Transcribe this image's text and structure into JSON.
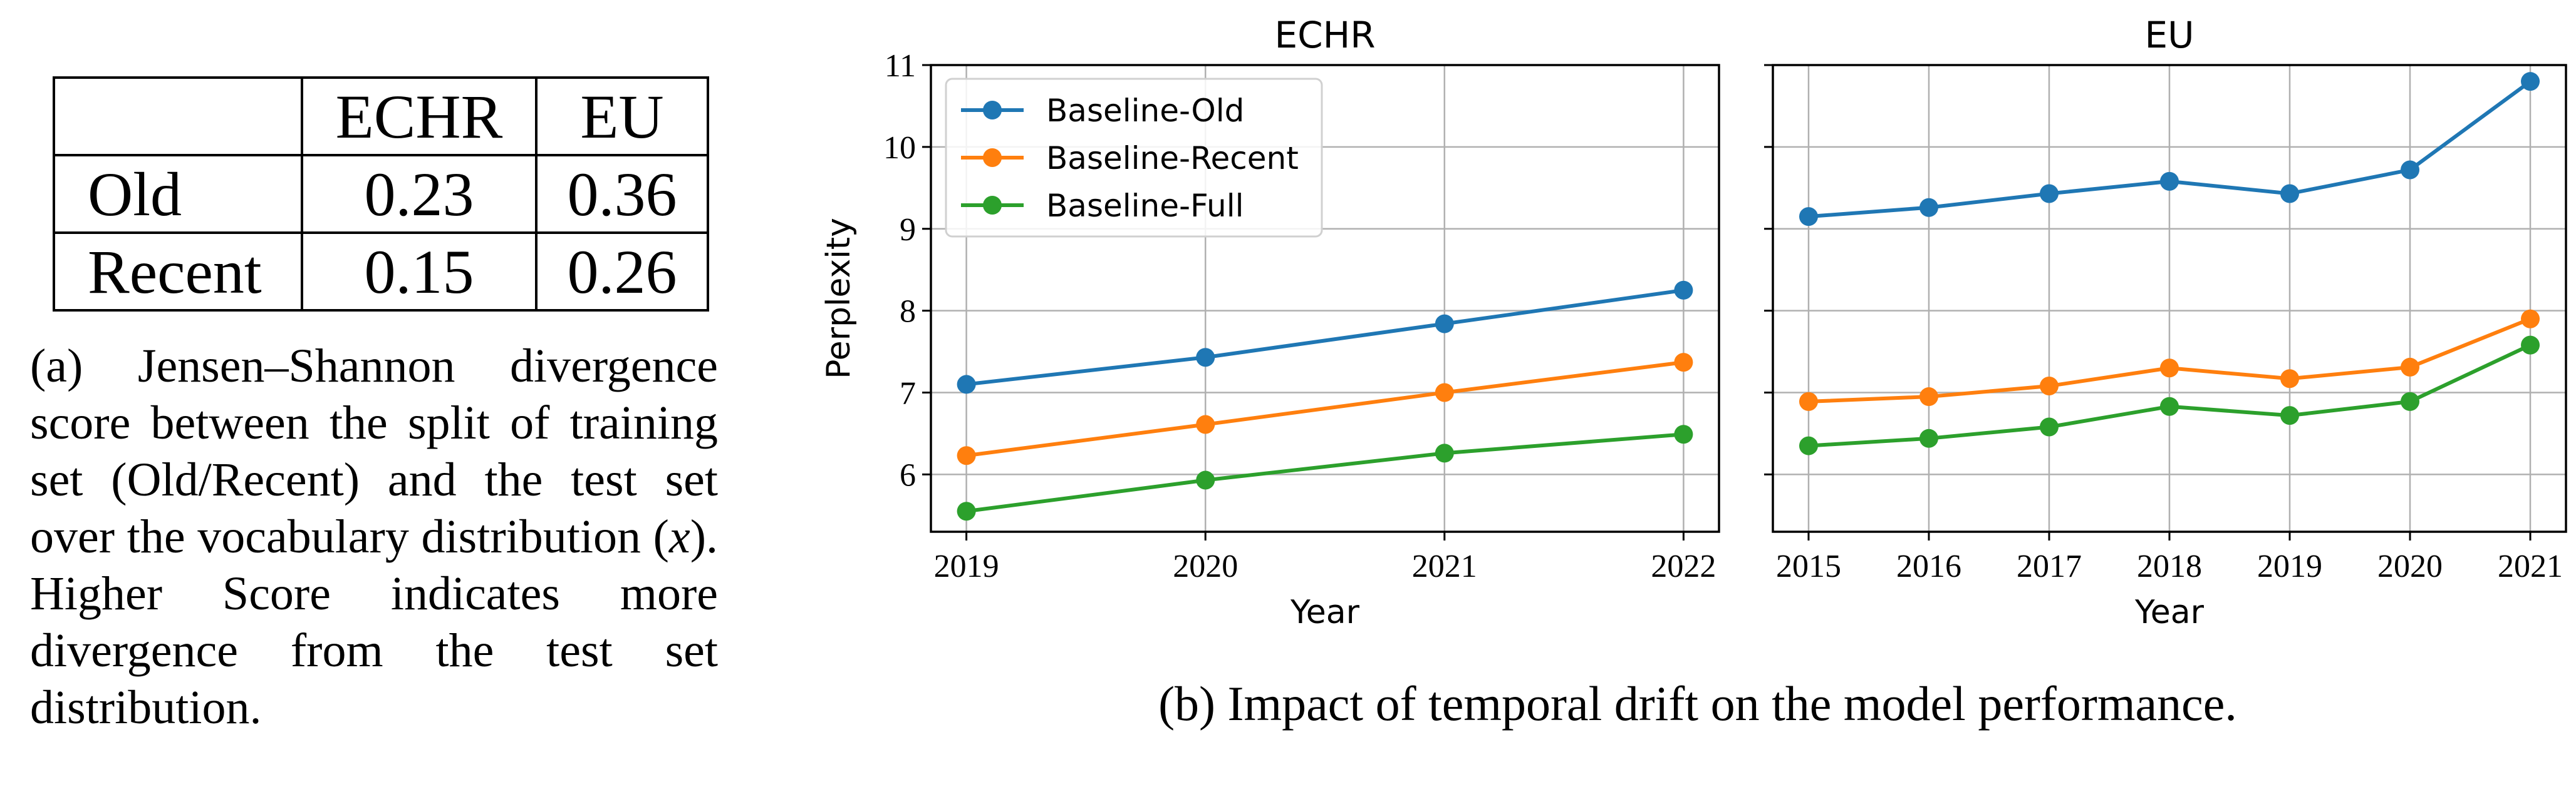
{
  "table": {
    "headers": [
      "",
      "ECHR",
      "EU"
    ],
    "rows": [
      {
        "label": "Old",
        "ECHR": "0.23",
        "EU": "0.36"
      },
      {
        "label": "Recent",
        "ECHR": "0.15",
        "EU": "0.26"
      }
    ]
  },
  "captions": {
    "a_prefix": "(a) Jensen–Shannon divergence score between the split of training set (Old/Recent) and the test set over the vocabulary distribution (",
    "a_var": "x",
    "a_suffix": "). Higher Score indicates more divergence from the test set distribution.",
    "b": "(b) Impact of temporal drift on the model performance."
  },
  "colors": {
    "Baseline-Old": "#1f77b4",
    "Baseline-Recent": "#ff7f0e",
    "Baseline-Full": "#2ca02c"
  },
  "chart_data": [
    {
      "type": "line",
      "title": "ECHR",
      "xlabel": "Year",
      "ylabel": "Perplexity",
      "x": [
        2019,
        2020,
        2021,
        2022
      ],
      "ylim": [
        5.3,
        11.0
      ],
      "yticks": [
        6,
        7,
        8,
        9,
        10,
        11
      ],
      "grid": true,
      "legend": "top-left",
      "series": [
        {
          "name": "Baseline-Old",
          "values": [
            7.1,
            7.43,
            7.84,
            8.25
          ]
        },
        {
          "name": "Baseline-Recent",
          "values": [
            6.23,
            6.61,
            7.0,
            7.37
          ]
        },
        {
          "name": "Baseline-Full",
          "values": [
            5.55,
            5.93,
            6.26,
            6.49
          ]
        }
      ]
    },
    {
      "type": "line",
      "title": "EU",
      "xlabel": "Year",
      "ylabel": "",
      "x": [
        2015,
        2016,
        2017,
        2018,
        2019,
        2020,
        2021
      ],
      "ylim": [
        5.3,
        11.0
      ],
      "yticks": [
        6,
        7,
        8,
        9,
        10,
        11
      ],
      "shared_y": true,
      "grid": true,
      "series": [
        {
          "name": "Baseline-Old",
          "values": [
            9.15,
            9.26,
            9.43,
            9.58,
            9.43,
            9.72,
            10.8
          ]
        },
        {
          "name": "Baseline-Recent",
          "values": [
            6.89,
            6.95,
            7.08,
            7.3,
            7.17,
            7.31,
            7.9
          ]
        },
        {
          "name": "Baseline-Full",
          "values": [
            6.35,
            6.44,
            6.58,
            6.83,
            6.72,
            6.89,
            7.58
          ]
        }
      ]
    }
  ]
}
